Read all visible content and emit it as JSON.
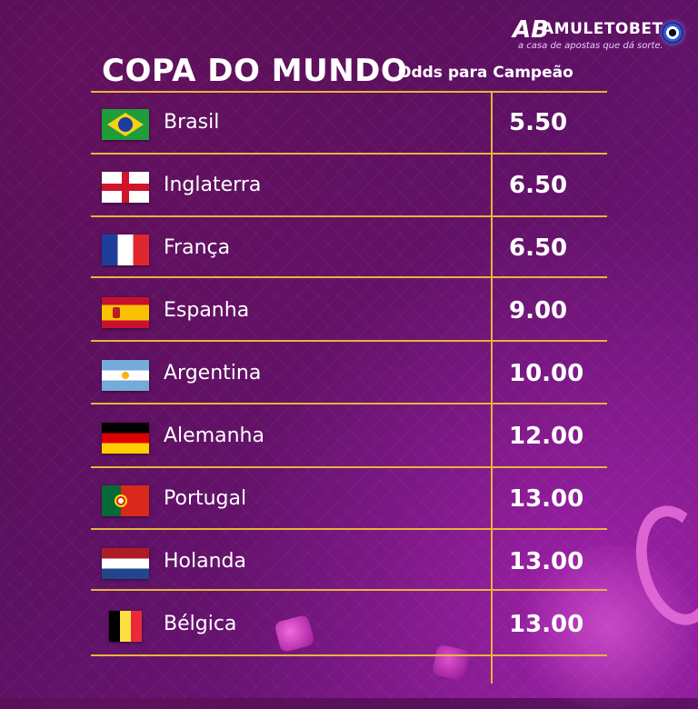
{
  "brand": {
    "mark": "AB",
    "name": "AMULETOBET",
    "tagline": "a casa de apostas que dá sorte."
  },
  "header": {
    "title": "COPA DO MUNDO",
    "subtitle": "Odds para Campeão"
  },
  "colors": {
    "accent_gold": "#e8b43a",
    "background_purple": "#5a1060",
    "text": "#ffffff"
  },
  "rows": [
    {
      "team": "Brasil",
      "odds": "5.50",
      "flag": "brazil-flag-icon"
    },
    {
      "team": "Inglaterra",
      "odds": "6.50",
      "flag": "england-flag-icon"
    },
    {
      "team": "França",
      "odds": "6.50",
      "flag": "france-flag-icon"
    },
    {
      "team": "Espanha",
      "odds": "9.00",
      "flag": "spain-flag-icon"
    },
    {
      "team": "Argentina",
      "odds": "10.00",
      "flag": "argentina-flag-icon"
    },
    {
      "team": "Alemanha",
      "odds": "12.00",
      "flag": "germany-flag-icon"
    },
    {
      "team": "Portugal",
      "odds": "13.00",
      "flag": "portugal-flag-icon"
    },
    {
      "team": "Holanda",
      "odds": "13.00",
      "flag": "netherlands-flag-icon"
    },
    {
      "team": "Bélgica",
      "odds": "13.00",
      "flag": "belgium-flag-icon"
    }
  ]
}
